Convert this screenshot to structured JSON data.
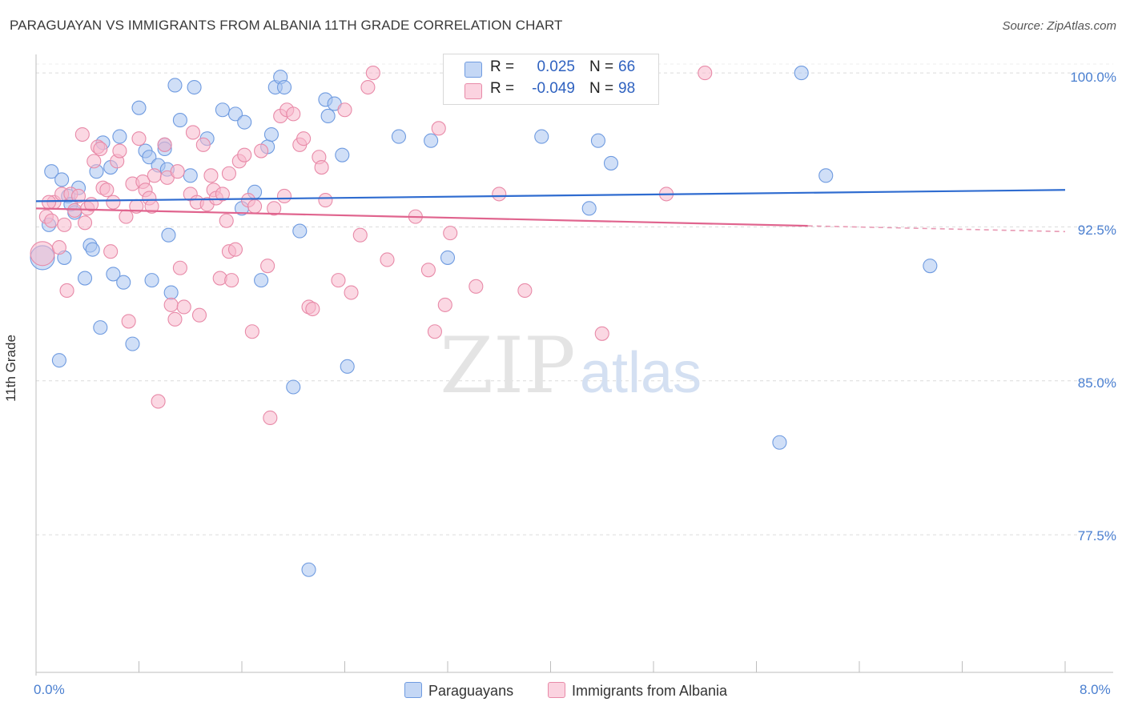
{
  "title": "PARAGUAYAN VS IMMIGRANTS FROM ALBANIA 11TH GRADE CORRELATION CHART",
  "source": "Source: ZipAtlas.com",
  "watermark": {
    "zip": "ZIP",
    "atlas": "atlas"
  },
  "legend": {
    "r_label": "R =",
    "n_label": "N =",
    "rows": [
      {
        "r": "0.025",
        "n": "66",
        "color": "#a9c4f0",
        "border": "#6f9be0"
      },
      {
        "r": "-0.049",
        "n": "98",
        "color": "#f7b8cc",
        "border": "#e88aa8"
      }
    ]
  },
  "bottom_legend": [
    "Paraguayans",
    "Immigrants from Albania"
  ],
  "chart_data": {
    "type": "scatter",
    "title": "PARAGUAYAN VS IMMIGRANTS FROM ALBANIA 11TH GRADE CORRELATION CHART",
    "xlabel": "",
    "ylabel": "11th Grade",
    "xlim": [
      0,
      8
    ],
    "ylim": [
      70.8,
      100.9
    ],
    "x_tick_labels": [
      "0.0%",
      "8.0%"
    ],
    "y_ticks": [
      77.5,
      85.0,
      92.5,
      100.0
    ],
    "y_tick_labels": [
      "77.5%",
      "85.0%",
      "92.5%",
      "100.0%"
    ],
    "grid": true,
    "series": [
      {
        "name": "Paraguayans",
        "color": "#6f9be0",
        "fill": "#a9c4f0",
        "trend": {
          "x": [
            0,
            8.0
          ],
          "y": [
            93.75,
            94.3
          ]
        },
        "points": [
          [
            0.05,
            91.0
          ],
          [
            0.1,
            92.6
          ],
          [
            0.12,
            95.2
          ],
          [
            0.2,
            94.8
          ],
          [
            0.22,
            91.0
          ],
          [
            0.25,
            94.0
          ],
          [
            0.27,
            93.6
          ],
          [
            0.3,
            93.2
          ],
          [
            0.33,
            94.4
          ],
          [
            0.38,
            90.0
          ],
          [
            0.42,
            91.6
          ],
          [
            0.44,
            91.4
          ],
          [
            0.47,
            95.2
          ],
          [
            0.5,
            87.6
          ],
          [
            0.52,
            96.6
          ],
          [
            0.58,
            95.4
          ],
          [
            0.6,
            90.2
          ],
          [
            0.65,
            96.9
          ],
          [
            0.68,
            89.8
          ],
          [
            0.75,
            86.8
          ],
          [
            0.8,
            98.3
          ],
          [
            0.85,
            96.2
          ],
          [
            0.88,
            95.9
          ],
          [
            0.9,
            89.9
          ],
          [
            0.95,
            95.5
          ],
          [
            1.0,
            96.5
          ],
          [
            1.02,
            95.3
          ],
          [
            1.03,
            92.1
          ],
          [
            1.05,
            89.3
          ],
          [
            1.08,
            99.4
          ],
          [
            1.12,
            97.7
          ],
          [
            1.2,
            95.0
          ],
          [
            1.23,
            99.3
          ],
          [
            1.33,
            96.8
          ],
          [
            1.45,
            98.2
          ],
          [
            1.55,
            98.0
          ],
          [
            1.6,
            93.4
          ],
          [
            1.62,
            97.6
          ],
          [
            1.7,
            94.2
          ],
          [
            1.75,
            89.9
          ],
          [
            1.8,
            96.4
          ],
          [
            1.83,
            97.0
          ],
          [
            1.86,
            99.3
          ],
          [
            1.9,
            99.8
          ],
          [
            1.93,
            99.3
          ],
          [
            2.0,
            84.7
          ],
          [
            2.05,
            92.3
          ],
          [
            2.12,
            75.8
          ],
          [
            2.25,
            98.7
          ],
          [
            2.27,
            97.9
          ],
          [
            2.32,
            98.5
          ],
          [
            2.38,
            96.0
          ],
          [
            2.42,
            85.7
          ],
          [
            2.82,
            96.9
          ],
          [
            3.07,
            96.7
          ],
          [
            3.2,
            91.0
          ],
          [
            3.93,
            96.9
          ],
          [
            4.3,
            93.4
          ],
          [
            4.37,
            96.7
          ],
          [
            4.47,
            95.6
          ],
          [
            5.95,
            100.0
          ],
          [
            6.14,
            95.0
          ],
          [
            5.78,
            82.0
          ],
          [
            6.95,
            90.6
          ],
          [
            0.18,
            86.0
          ],
          [
            1.0,
            96.3
          ]
        ]
      },
      {
        "name": "Immigrants from Albania",
        "color": "#e88aa8",
        "fill": "#f7b8cc",
        "trend": {
          "x": [
            0,
            6.0
          ],
          "y": [
            93.4,
            92.55
          ]
        },
        "trend_dashed": {
          "x": [
            6.0,
            8.0
          ],
          "y": [
            92.55,
            92.27
          ]
        },
        "points": [
          [
            0.05,
            91.2
          ],
          [
            0.08,
            93.0
          ],
          [
            0.12,
            92.8
          ],
          [
            0.14,
            93.7
          ],
          [
            0.18,
            91.5
          ],
          [
            0.2,
            94.1
          ],
          [
            0.22,
            92.6
          ],
          [
            0.24,
            89.4
          ],
          [
            0.27,
            94.1
          ],
          [
            0.3,
            93.3
          ],
          [
            0.33,
            94.0
          ],
          [
            0.36,
            97.0
          ],
          [
            0.38,
            92.7
          ],
          [
            0.4,
            93.4
          ],
          [
            0.43,
            93.6
          ],
          [
            0.45,
            95.7
          ],
          [
            0.48,
            96.4
          ],
          [
            0.5,
            96.3
          ],
          [
            0.52,
            94.4
          ],
          [
            0.55,
            94.3
          ],
          [
            0.58,
            91.3
          ],
          [
            0.6,
            93.7
          ],
          [
            0.63,
            95.7
          ],
          [
            0.65,
            96.2
          ],
          [
            0.7,
            93.0
          ],
          [
            0.72,
            87.9
          ],
          [
            0.75,
            94.6
          ],
          [
            0.78,
            93.5
          ],
          [
            0.8,
            96.8
          ],
          [
            0.83,
            94.7
          ],
          [
            0.85,
            94.3
          ],
          [
            0.88,
            93.9
          ],
          [
            0.9,
            93.5
          ],
          [
            0.92,
            95.0
          ],
          [
            0.95,
            84.0
          ],
          [
            1.0,
            96.5
          ],
          [
            1.02,
            94.9
          ],
          [
            1.05,
            88.7
          ],
          [
            1.08,
            88.0
          ],
          [
            1.1,
            95.2
          ],
          [
            1.12,
            90.5
          ],
          [
            1.15,
            88.6
          ],
          [
            1.2,
            94.1
          ],
          [
            1.22,
            97.1
          ],
          [
            1.25,
            93.7
          ],
          [
            1.27,
            88.2
          ],
          [
            1.3,
            96.5
          ],
          [
            1.33,
            93.6
          ],
          [
            1.36,
            95.0
          ],
          [
            1.38,
            94.3
          ],
          [
            1.4,
            93.9
          ],
          [
            1.43,
            90.0
          ],
          [
            1.45,
            94.1
          ],
          [
            1.48,
            92.8
          ],
          [
            1.5,
            91.3
          ],
          [
            1.52,
            89.9
          ],
          [
            1.55,
            91.4
          ],
          [
            1.58,
            95.7
          ],
          [
            1.62,
            96.0
          ],
          [
            1.65,
            93.8
          ],
          [
            1.68,
            87.4
          ],
          [
            1.7,
            93.5
          ],
          [
            1.75,
            96.2
          ],
          [
            1.8,
            90.6
          ],
          [
            1.82,
            83.2
          ],
          [
            1.85,
            93.4
          ],
          [
            1.9,
            97.9
          ],
          [
            1.93,
            94.0
          ],
          [
            1.95,
            98.2
          ],
          [
            2.0,
            98.0
          ],
          [
            2.05,
            96.5
          ],
          [
            2.08,
            96.8
          ],
          [
            2.12,
            88.6
          ],
          [
            2.15,
            88.5
          ],
          [
            2.2,
            95.9
          ],
          [
            2.22,
            95.4
          ],
          [
            2.25,
            93.8
          ],
          [
            2.35,
            89.9
          ],
          [
            2.4,
            98.2
          ],
          [
            2.45,
            89.3
          ],
          [
            2.52,
            92.1
          ],
          [
            2.58,
            99.3
          ],
          [
            2.62,
            100.0
          ],
          [
            2.73,
            90.9
          ],
          [
            2.95,
            93.0
          ],
          [
            3.05,
            90.4
          ],
          [
            3.1,
            87.4
          ],
          [
            3.13,
            97.3
          ],
          [
            3.18,
            88.7
          ],
          [
            3.22,
            92.2
          ],
          [
            3.42,
            89.6
          ],
          [
            3.6,
            94.1
          ],
          [
            3.8,
            89.4
          ],
          [
            4.4,
            87.3
          ],
          [
            4.9,
            94.1
          ],
          [
            5.2,
            100.0
          ],
          [
            0.1,
            93.7
          ],
          [
            1.5,
            95.1
          ]
        ]
      }
    ]
  }
}
